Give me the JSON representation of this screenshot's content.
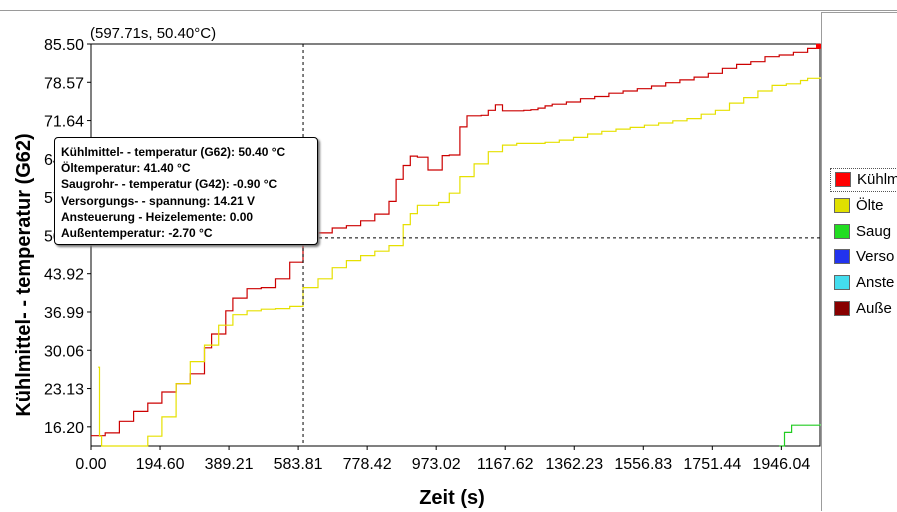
{
  "cursor_readout": "(597.71s, 50.40°C)",
  "tooltip": {
    "lines": [
      "Kühlmittel- - temperatur (G62): 50.40 °C",
      "Öltemperatur: 41.40 °C",
      "Saugrohr- - temperatur (G42): -0.90 °C",
      "Versorgungs- - spannung: 14.21  V",
      "Ansteuerung - Heizelemente: 0.00",
      "Außentemperatur: -2.70 °C"
    ]
  },
  "legend": [
    {
      "label": "Kühlm",
      "color": "#ff0000"
    },
    {
      "label": "Ölte",
      "color": "#e0e000"
    },
    {
      "label": "Saug",
      "color": "#22dd22"
    },
    {
      "label": "Verso",
      "color": "#2233ee"
    },
    {
      "label": "Anste",
      "color": "#44ddee"
    },
    {
      "label": "Auße",
      "color": "#880000"
    }
  ],
  "colors": {
    "coolant": "#cc0000",
    "oil": "#e6e000",
    "intake": "#22cc22",
    "cursor": "#000000"
  },
  "chart_data": {
    "type": "line",
    "xlabel": "Zeit (s)",
    "ylabel": "Kühlmittel- - temperatur (G62)",
    "xlim": [
      0,
      2055
    ],
    "ylim": [
      12.73,
      85.5
    ],
    "x_ticks": [
      "0.00",
      "194.60",
      "389.21",
      "583.81",
      "778.42",
      "973.02",
      "1167.62",
      "1362.23",
      "1556.83",
      "1751.44",
      "1946.04"
    ],
    "x_tick_values": [
      0,
      194.6,
      389.21,
      583.81,
      778.42,
      973.02,
      1167.62,
      1362.23,
      1556.83,
      1751.44,
      1946.04
    ],
    "y_ticks": [
      "85.50",
      "78.57",
      "71.64",
      "64.71",
      "57.78",
      "50.85",
      "43.92",
      "36.99",
      "30.06",
      "23.13",
      "16.20"
    ],
    "y_tick_values": [
      85.5,
      78.57,
      71.64,
      64.71,
      57.78,
      50.85,
      43.92,
      36.99,
      30.06,
      23.13,
      16.2
    ],
    "cursor": {
      "x": 597.71,
      "y": 50.4
    },
    "series": [
      {
        "key": "coolant",
        "x": [
          0,
          40,
          80,
          120,
          160,
          200,
          240,
          280,
          320,
          340,
          380,
          400,
          440,
          480,
          520,
          560,
          597.71,
          640,
          680,
          720,
          760,
          800,
          840,
          860,
          880,
          900,
          920,
          950,
          970,
          990,
          1010,
          1040,
          1060,
          1080,
          1100,
          1120,
          1140,
          1160,
          1180,
          1200,
          1220,
          1240,
          1260,
          1280,
          1300,
          1340,
          1380,
          1420,
          1460,
          1500,
          1540,
          1580,
          1620,
          1660,
          1700,
          1740,
          1780,
          1820,
          1860,
          1900,
          1940,
          1980,
          2020,
          2055
        ],
        "y": [
          14.6,
          15.1,
          17.2,
          19.0,
          20.5,
          22.5,
          24.0,
          25.8,
          30.5,
          33.0,
          37.2,
          39.5,
          41.2,
          41.4,
          43.0,
          46.0,
          50.4,
          51.3,
          52.2,
          52.6,
          53.5,
          54.7,
          57.0,
          61.0,
          63.5,
          65.2,
          65.0,
          62.7,
          62.7,
          65.3,
          65.4,
          70.5,
          72.5,
          72.5,
          72.6,
          73.5,
          74.5,
          73.4,
          73.4,
          73.4,
          73.5,
          73.6,
          73.9,
          74.3,
          74.6,
          75.0,
          75.6,
          76.0,
          76.6,
          77.0,
          77.4,
          77.9,
          78.5,
          79.0,
          79.5,
          80.2,
          81.1,
          81.8,
          82.3,
          83.2,
          83.5,
          84.0,
          84.7,
          85.0
        ]
      },
      {
        "key": "oil",
        "x": [
          20,
          24,
          30,
          160,
          200,
          240,
          280,
          320,
          360,
          400,
          440,
          480,
          520,
          560,
          597.71,
          640,
          680,
          720,
          760,
          800,
          840,
          880,
          900,
          920,
          950,
          980,
          1010,
          1040,
          1080,
          1120,
          1160,
          1200,
          1240,
          1280,
          1320,
          1360,
          1400,
          1440,
          1480,
          1520,
          1560,
          1600,
          1640,
          1680,
          1720,
          1760,
          1800,
          1840,
          1880,
          1920,
          1960,
          2000,
          2020,
          2055
        ],
        "y": [
          27.0,
          14.5,
          12.73,
          14.5,
          18.0,
          24.0,
          28.0,
          31.0,
          34.6,
          36.5,
          37.2,
          37.5,
          37.6,
          38.0,
          41.4,
          43.0,
          45.0,
          46.3,
          47.2,
          48.0,
          49.0,
          52.8,
          54.8,
          56.3,
          56.3,
          56.8,
          58.5,
          61.5,
          63.8,
          66.0,
          67.2,
          67.5,
          67.5,
          67.7,
          68.1,
          68.6,
          69.2,
          69.7,
          70.1,
          70.4,
          70.8,
          71.2,
          71.6,
          72.0,
          72.8,
          73.5,
          74.8,
          75.8,
          77.0,
          78.0,
          78.3,
          78.9,
          79.3,
          79.5
        ]
      },
      {
        "key": "intake",
        "x": [
          1940,
          1955,
          1975,
          2000,
          2055
        ],
        "y": [
          12.73,
          15.2,
          16.5,
          16.5,
          16.7
        ]
      }
    ]
  }
}
